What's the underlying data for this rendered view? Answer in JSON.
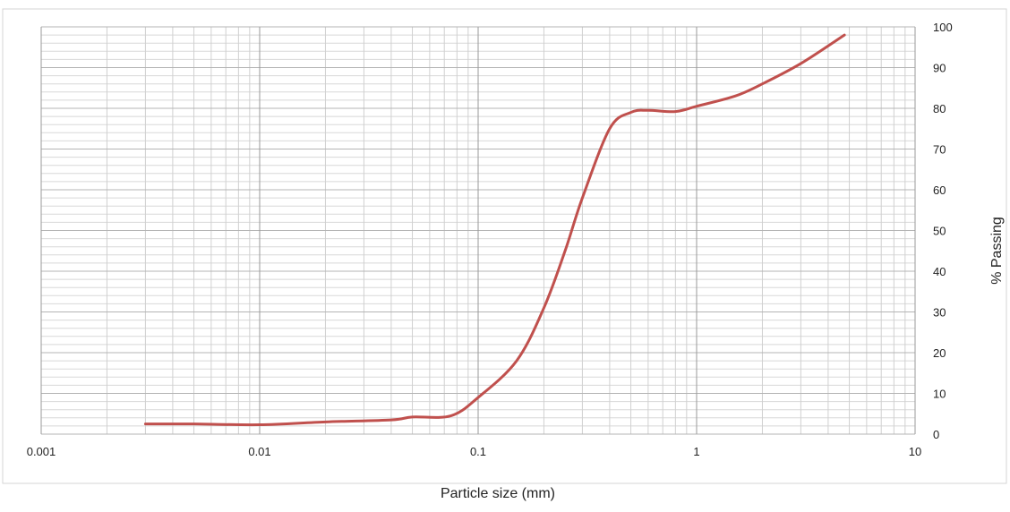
{
  "chart_data": {
    "type": "line",
    "title": "",
    "xlabel": "Particle size (mm)",
    "ylabel": "% Passing",
    "x_scale": "log",
    "xlim": [
      0.001,
      10
    ],
    "ylim": [
      0,
      100
    ],
    "x_tick_labels": [
      "0.001",
      "0.01",
      "0.1",
      "1",
      "10"
    ],
    "y_tick_labels": [
      "0",
      "10",
      "20",
      "30",
      "40",
      "50",
      "60",
      "70",
      "80",
      "90",
      "100"
    ],
    "y_axis_side": "right",
    "grid": true,
    "series": [
      {
        "color": "#c0504d",
        "x": [
          0.003,
          0.005,
          0.01,
          0.02,
          0.04,
          0.05,
          0.075,
          0.1,
          0.15,
          0.2,
          0.25,
          0.3,
          0.4,
          0.5,
          0.6,
          0.8,
          1,
          1.5,
          2,
          3,
          4.75
        ],
        "y": [
          2.5,
          2.5,
          2.3,
          3.0,
          3.5,
          4.2,
          4.5,
          9.0,
          18.0,
          31.0,
          45.0,
          58.0,
          75.0,
          79.0,
          79.5,
          79.2,
          80.5,
          83.0,
          86.0,
          91.0,
          98.0
        ]
      }
    ]
  }
}
